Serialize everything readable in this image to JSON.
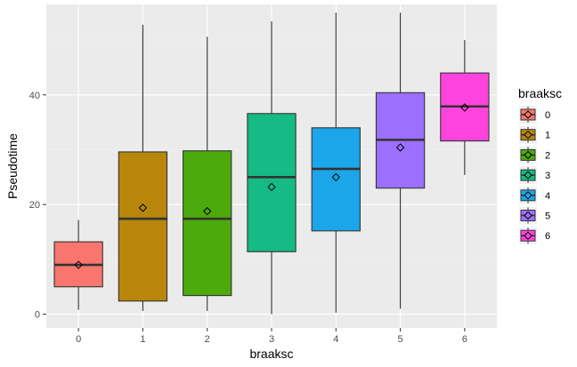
{
  "chart_data": {
    "type": "boxplot",
    "xlabel": "braaksc",
    "ylabel": "Pseudotime",
    "categories": [
      "0",
      "1",
      "2",
      "3",
      "4",
      "5",
      "6"
    ],
    "ylim": [
      -2.5,
      56.5
    ],
    "y_ticks": [
      0,
      20,
      40
    ],
    "y_tick_labels": [
      "0",
      "20",
      "40"
    ],
    "grid": true,
    "legend": {
      "title": "braaksc",
      "placement": "right",
      "labels": [
        "0",
        "1",
        "2",
        "3",
        "4",
        "5",
        "6"
      ]
    },
    "colors": [
      "#F8766D",
      "#B8860B",
      "#4DAA0C",
      "#16BA84",
      "#1AA6E8",
      "#9D6FFF",
      "#FF44DD"
    ],
    "series": [
      {
        "name": "0",
        "min": 0.8,
        "q1": 5.0,
        "median": 9.0,
        "q3": 13.2,
        "max": 17.2,
        "mean": 9.0
      },
      {
        "name": "1",
        "min": 0.6,
        "q1": 2.4,
        "median": 17.4,
        "q3": 29.6,
        "max": 52.8,
        "mean": 19.4
      },
      {
        "name": "2",
        "min": 0.6,
        "q1": 3.4,
        "median": 17.4,
        "q3": 29.8,
        "max": 50.6,
        "mean": 18.8
      },
      {
        "name": "3",
        "min": 0.0,
        "q1": 11.4,
        "median": 25.0,
        "q3": 36.6,
        "max": 53.4,
        "mean": 23.2
      },
      {
        "name": "4",
        "min": 0.3,
        "q1": 15.2,
        "median": 26.5,
        "q3": 34.0,
        "max": 55.0,
        "mean": 25.0
      },
      {
        "name": "5",
        "min": 1.0,
        "q1": 23.0,
        "median": 31.8,
        "q3": 40.4,
        "max": 55.0,
        "mean": 30.4
      },
      {
        "name": "6",
        "min": 25.4,
        "q1": 31.6,
        "median": 37.9,
        "q3": 44.0,
        "max": 50.0,
        "mean": 37.7
      }
    ]
  }
}
